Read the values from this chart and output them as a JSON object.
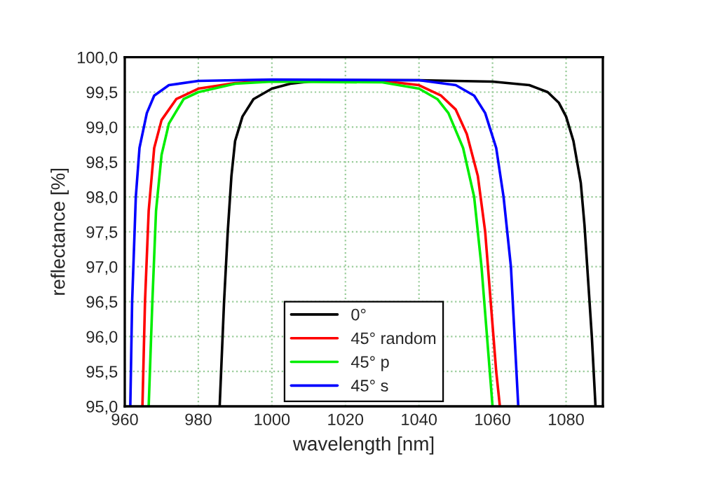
{
  "chart_data": {
    "type": "line",
    "xlabel": "wavelength [nm]",
    "ylabel": "reflectance [%]",
    "xlim": [
      960,
      1090
    ],
    "xticks": [
      960,
      980,
      1000,
      1020,
      1040,
      1060,
      1080
    ],
    "ylim": [
      95.0,
      100.0
    ],
    "yticks": [
      {
        "value": 95.0,
        "label": "95,0"
      },
      {
        "value": 95.5,
        "label": "95,5"
      },
      {
        "value": 96.0,
        "label": "96,0"
      },
      {
        "value": 96.5,
        "label": "96,5"
      },
      {
        "value": 97.0,
        "label": "97,0"
      },
      {
        "value": 97.5,
        "label": "97,5"
      },
      {
        "value": 98.0,
        "label": "98,0"
      },
      {
        "value": 98.5,
        "label": "98,5"
      },
      {
        "value": 99.0,
        "label": "99,0"
      },
      {
        "value": 99.5,
        "label": "99,5"
      },
      {
        "value": 100.0,
        "label": "100,0"
      }
    ],
    "grid": true,
    "legend": "bottom",
    "marker": "none",
    "line_style": "solid",
    "series": [
      {
        "name": "0°",
        "color": "#000000",
        "x": [
          985.8,
          987,
          988,
          989,
          990,
          992,
          995,
          1000,
          1005,
          1010,
          1020,
          1040,
          1060,
          1070,
          1075,
          1078,
          1080,
          1082,
          1084,
          1085,
          1086,
          1087,
          1088
        ],
        "values": [
          95.0,
          96.5,
          97.5,
          98.3,
          98.8,
          99.15,
          99.4,
          99.55,
          99.62,
          99.65,
          99.67,
          99.67,
          99.65,
          99.6,
          99.5,
          99.35,
          99.15,
          98.8,
          98.2,
          97.6,
          96.8,
          96.0,
          95.0
        ]
      },
      {
        "name": "45° random",
        "color": "#ff0000",
        "x": [
          964.8,
          965.5,
          966.5,
          968,
          970,
          974,
          980,
          990,
          1000,
          1030,
          1040,
          1046,
          1050,
          1053,
          1056,
          1058,
          1059.5,
          1061,
          1062
        ],
        "values": [
          95.0,
          96.5,
          97.8,
          98.7,
          99.1,
          99.4,
          99.55,
          99.63,
          99.66,
          99.66,
          99.6,
          99.45,
          99.25,
          98.9,
          98.3,
          97.5,
          96.5,
          95.5,
          95.0
        ]
      },
      {
        "name": "45° p",
        "color": "#00ee00",
        "x": [
          966.5,
          967.5,
          968.5,
          970,
          972,
          976,
          980,
          990,
          1000,
          1030,
          1040,
          1045,
          1048,
          1052,
          1055,
          1057,
          1058.5,
          1060
        ],
        "values": [
          95.0,
          96.5,
          97.8,
          98.6,
          99.05,
          99.4,
          99.5,
          99.62,
          99.65,
          99.64,
          99.55,
          99.4,
          99.2,
          98.7,
          98.0,
          97.0,
          96.0,
          95.0
        ]
      },
      {
        "name": "45° s",
        "color": "#0000ff",
        "x": [
          961.5,
          962,
          963,
          964,
          966,
          968,
          972,
          980,
          1000,
          1040,
          1050,
          1055,
          1058,
          1061,
          1063,
          1065,
          1066,
          1067
        ],
        "values": [
          95.0,
          96.5,
          98.0,
          98.7,
          99.2,
          99.45,
          99.6,
          99.66,
          99.68,
          99.67,
          99.6,
          99.45,
          99.2,
          98.7,
          98.0,
          97.0,
          96.0,
          95.0
        ]
      }
    ]
  }
}
